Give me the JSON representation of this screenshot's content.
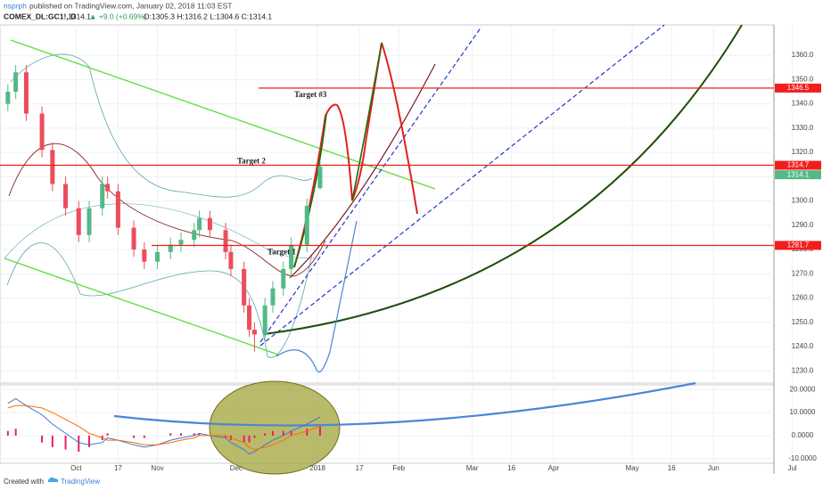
{
  "header": {
    "author": "nsprph",
    "published": "published on TradingView.com, January 02, 2018 11:03 EST",
    "symbol": "COMEX_DL:GC1!, D",
    "last": "1314.1",
    "change": "▲ +9.0 (+0.69%)",
    "ohlc": "O:1305.3 H:1316.2 L:1304.6 C:1314.1"
  },
  "footer": {
    "created": "Created with",
    "brand": "TradingView"
  },
  "chart_data": [
    {
      "type": "candlestick",
      "x": [
        "2017-09-05",
        "2017-09-08",
        "2017-09-12",
        "2017-09-18",
        "2017-09-22",
        "2017-09-27",
        "2017-10-02",
        "2017-10-06",
        "2017-10-11",
        "2017-10-13",
        "2017-10-17",
        "2017-10-23",
        "2017-10-27",
        "2017-11-01",
        "2017-11-06",
        "2017-11-10",
        "2017-11-15",
        "2017-11-17",
        "2017-11-21",
        "2017-11-27",
        "2017-11-29",
        "2017-12-04",
        "2017-12-06",
        "2017-12-08",
        "2017-12-12",
        "2017-12-15",
        "2017-12-19",
        "2017-12-22",
        "2017-12-28",
        "2018-01-02"
      ],
      "open": [
        1340,
        1345,
        1353,
        1336,
        1321,
        1307,
        1297,
        1286,
        1297,
        1307,
        1304,
        1289,
        1280,
        1275,
        1279,
        1282,
        1284,
        1288,
        1293,
        1288,
        1279,
        1272,
        1257,
        1247,
        1245,
        1257,
        1264,
        1272,
        1282,
        1305.3
      ],
      "high": [
        1348,
        1356,
        1356,
        1339,
        1324,
        1310,
        1300,
        1300,
        1310,
        1310,
        1307,
        1292,
        1283,
        1282,
        1285,
        1287,
        1291,
        1296,
        1296,
        1291,
        1282,
        1275,
        1260,
        1250,
        1260,
        1267,
        1275,
        1285,
        1301,
        1316.2
      ],
      "low": [
        1337,
        1342,
        1333,
        1318,
        1304,
        1294,
        1283,
        1283,
        1294,
        1301,
        1286,
        1277,
        1272,
        1272,
        1276,
        1279,
        1281,
        1285,
        1285,
        1276,
        1269,
        1254,
        1244,
        1238,
        1242,
        1254,
        1261,
        1269,
        1279,
        1304.6
      ],
      "close": [
        1345,
        1353,
        1336,
        1321,
        1307,
        1297,
        1286,
        1297,
        1307,
        1304,
        1289,
        1280,
        1275,
        1279,
        1282,
        1284,
        1288,
        1293,
        1288,
        1279,
        1272,
        1257,
        1247,
        1245,
        1257,
        1264,
        1272,
        1282,
        1298,
        1314.1
      ],
      "up_color": "#53b987",
      "down_color": "#eb4d5c",
      "xlim": [
        "2017-09-02",
        "2018-06-24"
      ],
      "xticks": [
        {
          "value": "2017-10-01",
          "label": "Oct"
        },
        {
          "value": "2017-10-17",
          "label": "17"
        },
        {
          "value": "2017-11-01",
          "label": "Nov"
        },
        {
          "value": "2017-12-01",
          "label": "Dec"
        },
        {
          "value": "2018-01-01",
          "label": "2018"
        },
        {
          "value": "2018-01-17",
          "label": "17"
        },
        {
          "value": "2018-02-01",
          "label": "Feb"
        },
        {
          "value": "2018-03-01",
          "label": "Mar"
        },
        {
          "value": "2018-03-16",
          "label": "16"
        },
        {
          "value": "2018-04-01",
          "label": "Apr"
        },
        {
          "value": "2018-05-01",
          "label": "May"
        },
        {
          "value": "2018-05-16",
          "label": "16"
        },
        {
          "value": "2018-06-01",
          "label": "Jun"
        },
        {
          "value": "2018-07-01",
          "label": "Jul"
        }
      ],
      "ylim": [
        1225,
        1372.5
      ],
      "yticks": [
        {
          "value": 1230,
          "label": "1230.0"
        },
        {
          "value": 1240,
          "label": "1240.0"
        },
        {
          "value": 1250,
          "label": "1250.0"
        },
        {
          "value": 1260,
          "label": "1260.0"
        },
        {
          "value": 1270,
          "label": "1270.0"
        },
        {
          "value": 1280,
          "label": "1280.0"
        },
        {
          "value": 1290,
          "label": "1290.0"
        },
        {
          "value": 1300,
          "label": "1300.0"
        },
        {
          "value": 1310,
          "label": "1310.0"
        },
        {
          "value": 1320,
          "label": "1320.0"
        },
        {
          "value": 1330,
          "label": "1330.0"
        },
        {
          "value": 1340,
          "label": "1340.0"
        },
        {
          "value": 1350,
          "label": "1350.0"
        },
        {
          "value": 1360,
          "label": "1360.0"
        }
      ],
      "price_lines": [
        {
          "label": "Target #3",
          "value": 1346.5,
          "color": "#f21d1d"
        },
        {
          "label": "Target 2",
          "value": 1314.7,
          "color": "#f21d1d"
        },
        {
          "label": "Target 1",
          "value": 1281.7,
          "color": "#f21d1d"
        }
      ],
      "last_price": {
        "value": 1314.1,
        "color": "#53b987"
      }
    },
    {
      "type": "macd",
      "macd": [
        14,
        16,
        13,
        9,
        5,
        1,
        -3,
        -4,
        -3,
        -1,
        -2,
        -4,
        -5,
        -4,
        -2,
        -1,
        0,
        1,
        0,
        -1,
        -3,
        -6,
        -8,
        -7,
        -4,
        -2,
        0,
        2,
        5,
        8
      ],
      "signal": [
        12,
        13,
        13,
        12,
        10,
        7,
        4,
        1,
        -1,
        -2,
        -2,
        -3,
        -4,
        -4,
        -3,
        -2,
        -1,
        0,
        0,
        0,
        -1,
        -3,
        -5,
        -6,
        -5,
        -4,
        -2,
        0,
        2,
        4
      ],
      "histogram": [
        2,
        3,
        0,
        -3,
        -5,
        -6,
        -7,
        -5,
        -2,
        1,
        0,
        -1,
        -1,
        0,
        1,
        1,
        1,
        1,
        0,
        -1,
        -2,
        -3,
        -3,
        -1,
        1,
        2,
        2,
        2,
        3,
        4
      ],
      "macd_color": "#3c78d8",
      "signal_color": "#ff6d00",
      "hist_color": "#e91e63",
      "ylim": [
        -12,
        22
      ],
      "yticks": [
        {
          "value": -10,
          "label": "-10.0000"
        },
        {
          "value": 0,
          "label": "0.0000"
        },
        {
          "value": 10,
          "label": "10.0000"
        },
        {
          "value": 20,
          "label": "20.0000"
        }
      ]
    }
  ]
}
